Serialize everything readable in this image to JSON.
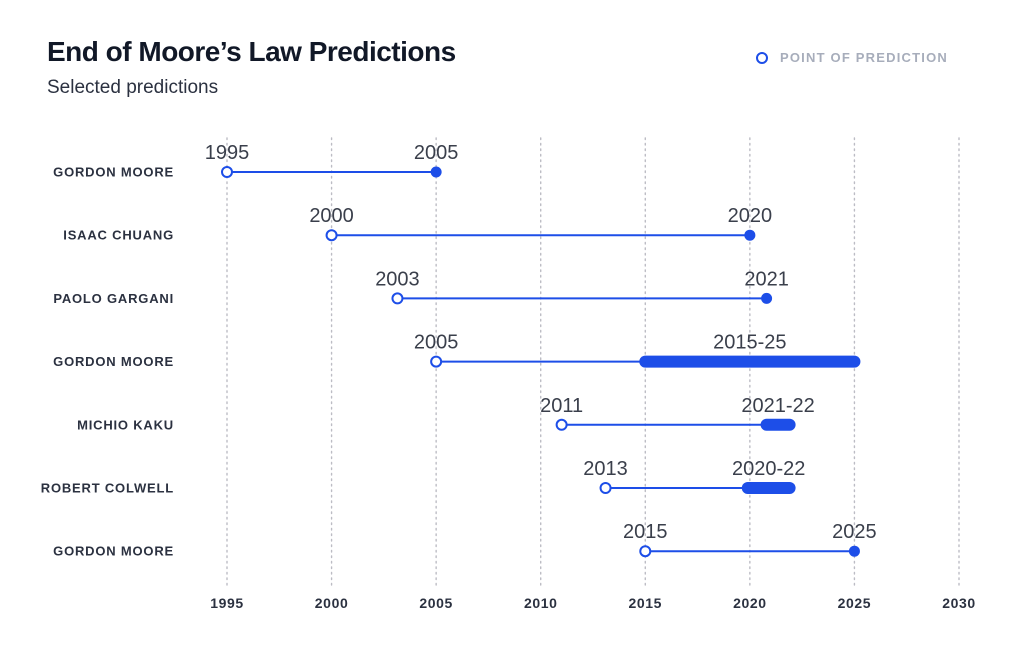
{
  "chart_data": {
    "type": "timeline",
    "title": "End of Moore’s Law Predictions",
    "subtitle": "Selected predictions",
    "legend": {
      "label": "POINT OF PREDICTION",
      "placement": "top-right"
    },
    "x_ticks": [
      "1995",
      "2000",
      "2005",
      "2010",
      "2015",
      "2020",
      "2025",
      "2030"
    ],
    "xlim": [
      1995,
      2030
    ],
    "grid": "vertical-dotted",
    "colors": {
      "accent": "#1d4ee8",
      "grid": "#bcbcc4",
      "text": "#2b3140"
    },
    "predictions": [
      {
        "name": "GORDON MOORE",
        "made": 1995,
        "made_label": "1995",
        "end": 2005,
        "end_label": "2005"
      },
      {
        "name": "ISAAC CHUANG",
        "made": 2000,
        "made_label": "2000",
        "end": 2020,
        "end_label": "2020"
      },
      {
        "name": "PAOLO GARGANI",
        "made": 2003.15,
        "made_label": "2003",
        "end": 2020.8,
        "end_label": "2021"
      },
      {
        "name": "GORDON MOORE",
        "made": 2005,
        "made_label": "2005",
        "end_range": [
          2015,
          2025
        ],
        "end_label": "2015-25"
      },
      {
        "name": "MICHIO KAKU",
        "made": 2011,
        "made_label": "2011",
        "end_range": [
          2020.8,
          2021.9
        ],
        "end_label": "2021-22"
      },
      {
        "name": "ROBERT COLWELL",
        "made": 2013.1,
        "made_label": "2013",
        "end_range": [
          2019.9,
          2021.9
        ],
        "end_label": "2020-22"
      },
      {
        "name": "GORDON MOORE",
        "made": 2015,
        "made_label": "2015",
        "end": 2025,
        "end_label": "2025"
      }
    ]
  }
}
